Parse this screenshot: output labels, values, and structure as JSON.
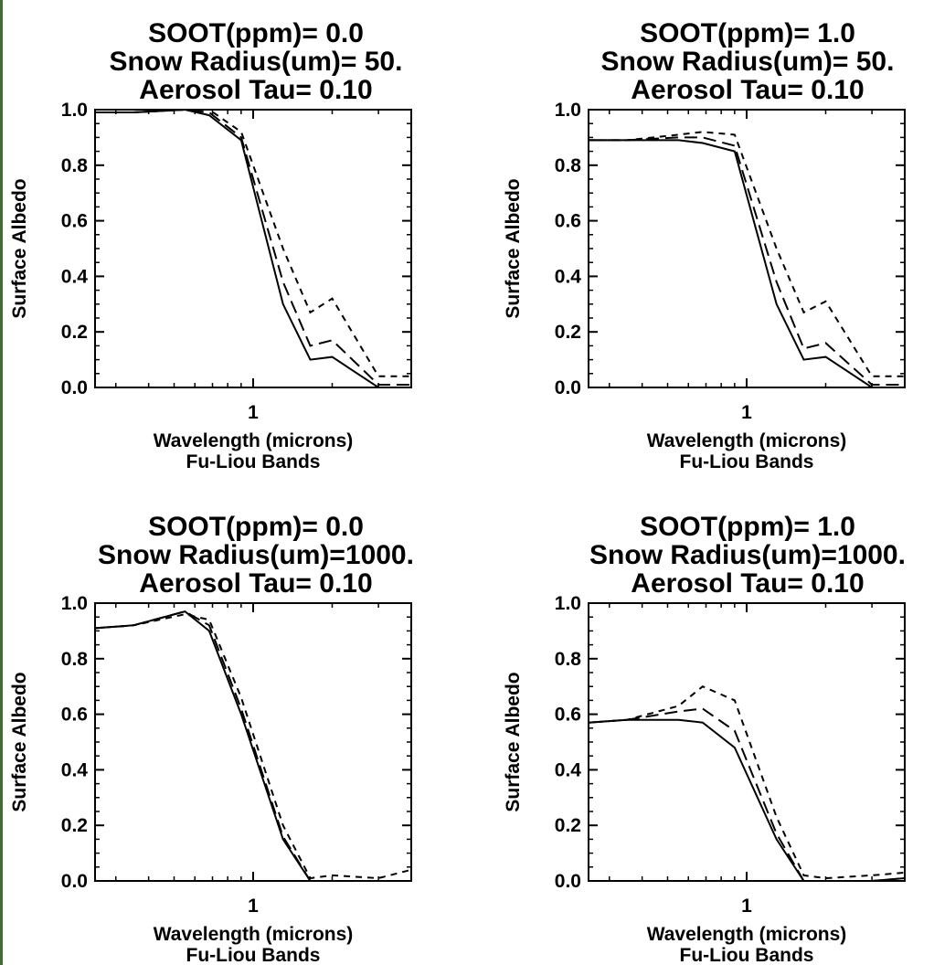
{
  "chart_data": [
    {
      "type": "line",
      "title_lines": [
        "SOOT(ppm)=  0.0",
        "Snow Radius(um)=  50.",
        "Aerosol Tau= 0.10"
      ],
      "xlabel": "Wavelength (microns)",
      "xlabel2": "Fu-Liou Bands",
      "ylabel": "Surface Albedo",
      "x_scale": "log",
      "xlim": [
        0.25,
        4.0
      ],
      "ylim": [
        0.0,
        1.0
      ],
      "x_ticks": [
        1
      ],
      "y_ticks": [
        "0.0",
        "0.2",
        "0.4",
        "0.6",
        "0.8",
        "1.0"
      ],
      "grid": false,
      "x": [
        0.25,
        0.35,
        0.55,
        0.68,
        0.9,
        1.3,
        1.65,
        2.0,
        3.0,
        4.0
      ],
      "series": [
        {
          "line_style": "solid",
          "values": [
            0.99,
            0.99,
            1.0,
            0.98,
            0.89,
            0.3,
            0.1,
            0.11,
            0.0,
            0.0
          ]
        },
        {
          "line_style": "long-dash",
          "values": [
            0.99,
            0.99,
            1.0,
            0.99,
            0.9,
            0.38,
            0.15,
            0.17,
            0.01,
            0.01
          ]
        },
        {
          "line_style": "short-dash",
          "values": [
            0.99,
            0.99,
            1.0,
            1.0,
            0.92,
            0.5,
            0.27,
            0.32,
            0.04,
            0.04
          ]
        }
      ]
    },
    {
      "type": "line",
      "title_lines": [
        "SOOT(ppm)=  1.0",
        "Snow Radius(um)=  50.",
        "Aerosol Tau= 0.10"
      ],
      "xlabel": "Wavelength (microns)",
      "xlabel2": "Fu-Liou Bands",
      "ylabel": "Surface Albedo",
      "x_scale": "log",
      "xlim": [
        0.25,
        4.0
      ],
      "ylim": [
        0.0,
        1.0
      ],
      "x_ticks": [
        1
      ],
      "y_ticks": [
        "0.0",
        "0.2",
        "0.4",
        "0.6",
        "0.8",
        "1.0"
      ],
      "grid": false,
      "x": [
        0.25,
        0.35,
        0.55,
        0.68,
        0.9,
        1.3,
        1.65,
        2.0,
        3.0,
        4.0
      ],
      "series": [
        {
          "line_style": "solid",
          "values": [
            0.89,
            0.89,
            0.89,
            0.88,
            0.85,
            0.3,
            0.1,
            0.11,
            0.0,
            0.0
          ]
        },
        {
          "line_style": "long-dash",
          "values": [
            0.89,
            0.89,
            0.9,
            0.9,
            0.87,
            0.38,
            0.14,
            0.16,
            0.01,
            0.01
          ]
        },
        {
          "line_style": "short-dash",
          "values": [
            0.89,
            0.89,
            0.91,
            0.92,
            0.91,
            0.5,
            0.27,
            0.31,
            0.04,
            0.04
          ]
        }
      ]
    },
    {
      "type": "line",
      "title_lines": [
        "SOOT(ppm)=  0.0",
        "Snow Radius(um)=1000.",
        "Aerosol Tau= 0.10"
      ],
      "xlabel": "Wavelength (microns)",
      "xlabel2": "Fu-Liou Bands",
      "ylabel": "Surface Albedo",
      "x_scale": "log",
      "xlim": [
        0.25,
        4.0
      ],
      "ylim": [
        0.0,
        1.0
      ],
      "x_ticks": [
        1
      ],
      "y_ticks": [
        "0.0",
        "0.2",
        "0.4",
        "0.6",
        "0.8",
        "1.0"
      ],
      "grid": false,
      "x": [
        0.25,
        0.35,
        0.55,
        0.68,
        0.9,
        1.3,
        1.65,
        2.0,
        3.0,
        4.0
      ],
      "series": [
        {
          "line_style": "solid",
          "values": [
            0.91,
            0.92,
            0.97,
            0.9,
            0.6,
            0.15,
            0.0,
            0.0,
            0.0,
            0.0
          ]
        },
        {
          "line_style": "long-dash",
          "values": [
            0.91,
            0.92,
            0.97,
            0.92,
            0.62,
            0.16,
            0.0,
            0.0,
            0.0,
            0.0
          ]
        },
        {
          "line_style": "short-dash",
          "values": [
            0.91,
            0.92,
            0.96,
            0.94,
            0.66,
            0.2,
            0.01,
            0.02,
            0.01,
            0.04
          ]
        }
      ]
    },
    {
      "type": "line",
      "title_lines": [
        "SOOT(ppm)=  1.0",
        "Snow Radius(um)=1000.",
        "Aerosol Tau= 0.10"
      ],
      "xlabel": "Wavelength (microns)",
      "xlabel2": "Fu-Liou Bands",
      "ylabel": "Surface Albedo",
      "x_scale": "log",
      "xlim": [
        0.25,
        4.0
      ],
      "ylim": [
        0.0,
        1.0
      ],
      "x_ticks": [
        1
      ],
      "y_ticks": [
        "0.0",
        "0.2",
        "0.4",
        "0.6",
        "0.8",
        "1.0"
      ],
      "grid": false,
      "x": [
        0.25,
        0.35,
        0.55,
        0.68,
        0.9,
        1.3,
        1.65,
        2.0,
        3.0,
        4.0
      ],
      "series": [
        {
          "line_style": "solid",
          "values": [
            0.57,
            0.58,
            0.58,
            0.57,
            0.48,
            0.15,
            0.0,
            0.0,
            0.0,
            0.01
          ]
        },
        {
          "line_style": "long-dash",
          "values": [
            0.57,
            0.58,
            0.61,
            0.62,
            0.54,
            0.17,
            0.0,
            0.0,
            0.0,
            0.01
          ]
        },
        {
          "line_style": "short-dash",
          "values": [
            0.57,
            0.58,
            0.63,
            0.7,
            0.65,
            0.23,
            0.02,
            0.01,
            0.02,
            0.03
          ]
        }
      ]
    }
  ]
}
